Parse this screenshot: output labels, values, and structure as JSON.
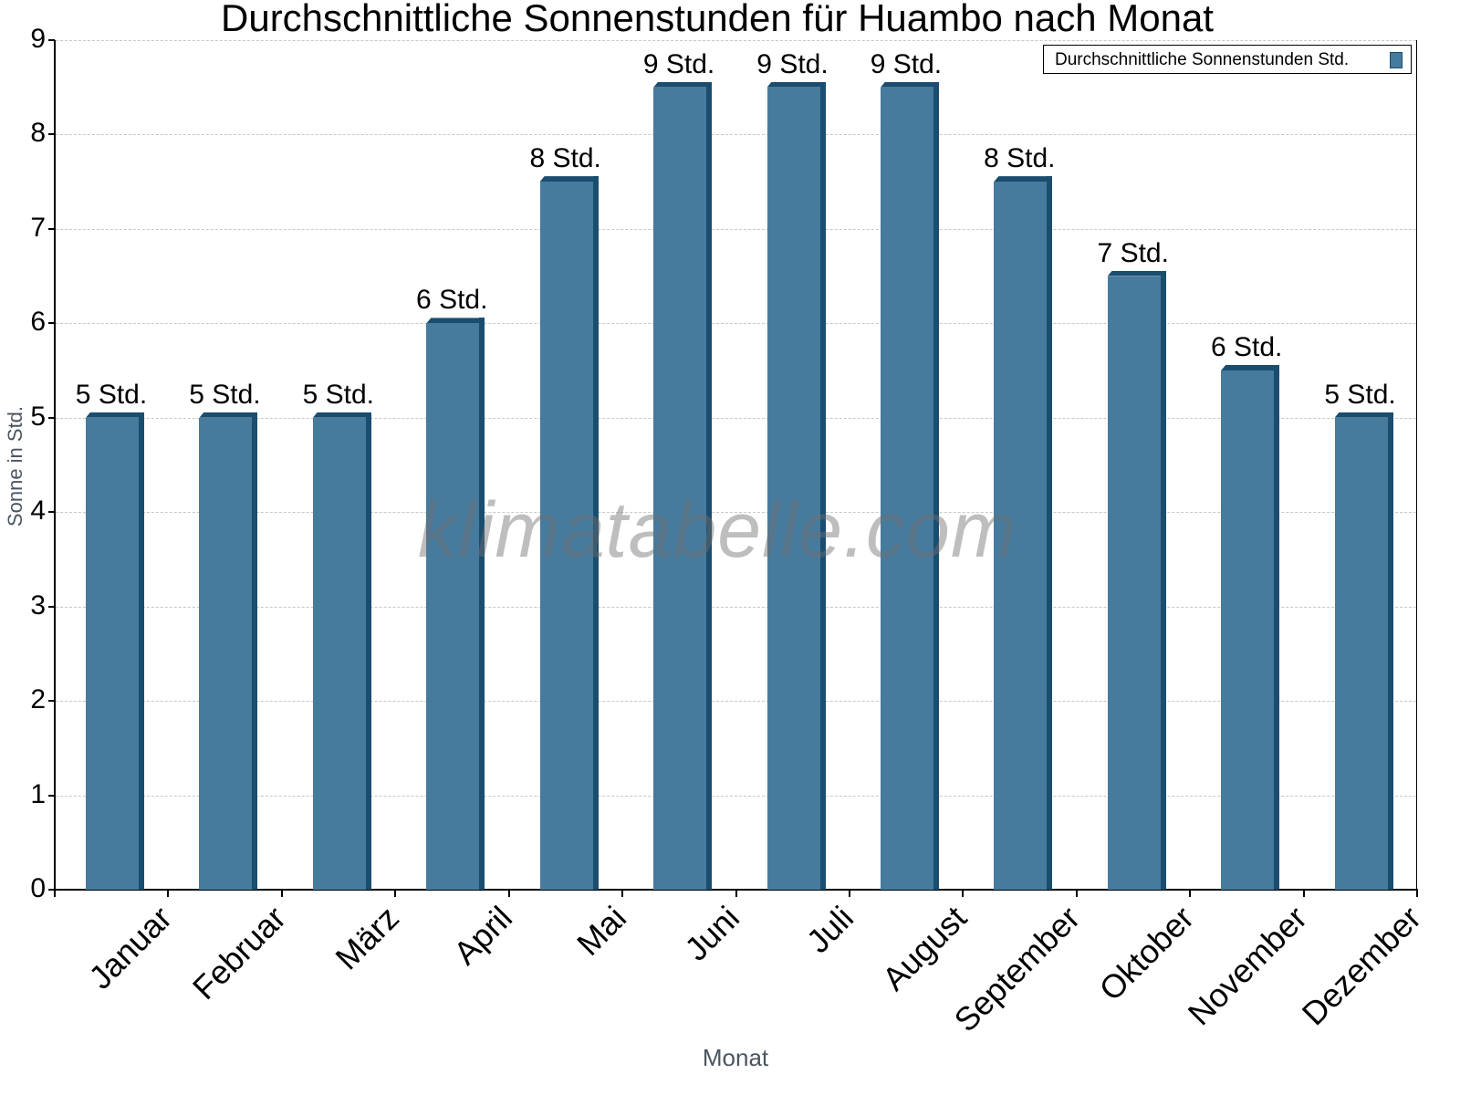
{
  "chart_data": {
    "type": "bar",
    "title": "Durchschnittliche Sonnenstunden für Huambo nach Monat",
    "xlabel": "Monat",
    "ylabel": "Sonne in Std.",
    "ylim": [
      0,
      9
    ],
    "yticks": [
      "0",
      "1",
      "2",
      "3",
      "4",
      "5",
      "6",
      "7",
      "8",
      "9"
    ],
    "grid": true,
    "legend_position": "top-right",
    "categories": [
      "Januar",
      "Februar",
      "März",
      "April",
      "Mai",
      "Juni",
      "Juli",
      "August",
      "September",
      "Oktober",
      "November",
      "Dezember"
    ],
    "series": [
      {
        "name": "Durchschnittliche Sonnenstunden Std.",
        "color": "#467b9e",
        "values": [
          5,
          5,
          5,
          6,
          7.5,
          8.5,
          8.5,
          8.5,
          7.5,
          6.5,
          5.5,
          5
        ],
        "labels": [
          "5 Std.",
          "5 Std.",
          "5 Std.",
          "6 Std.",
          "8 Std.",
          "9 Std.",
          "9 Std.",
          "9 Std.",
          "8 Std.",
          "7 Std.",
          "6 Std.",
          "5 Std."
        ]
      }
    ],
    "watermark": "klimatabelle.com"
  }
}
